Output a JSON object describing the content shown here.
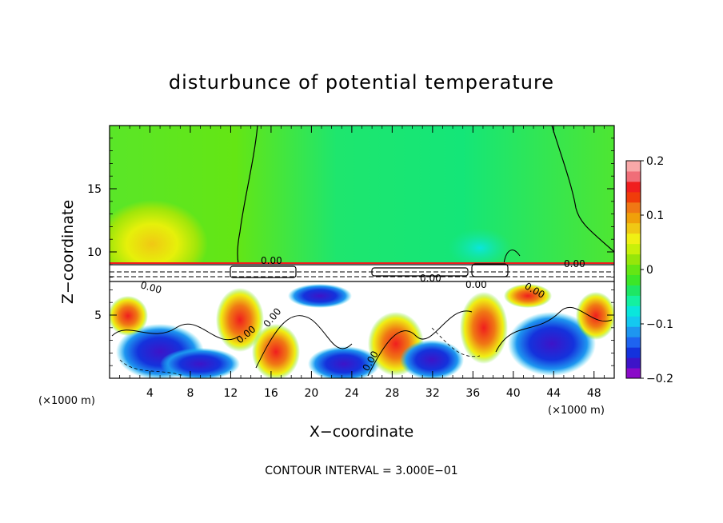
{
  "chart_data": {
    "type": "heatmap",
    "title": "disturbunce of potential temperature",
    "xlabel": "X−coordinate",
    "ylabel": "Z−coordinate",
    "x_unit": "(×1000 m)",
    "x_unit_right": "(×1000 m)",
    "xlim": [
      0,
      50
    ],
    "ylim": [
      0,
      20
    ],
    "x_ticks": [
      4,
      8,
      12,
      16,
      20,
      24,
      28,
      32,
      36,
      40,
      44,
      48
    ],
    "x_tick_labels": [
      "4",
      "8",
      "12",
      "16",
      "20",
      "24",
      "28",
      "32",
      "36",
      "40",
      "44",
      "48"
    ],
    "y_ticks": [
      5,
      10,
      15
    ],
    "y_tick_labels": [
      "5",
      "10",
      "15"
    ],
    "colorbar": {
      "min": -0.2,
      "max": 0.2,
      "ticks": [
        0.2,
        0.1,
        0,
        -0.1,
        -0.2
      ],
      "tick_labels": [
        "0.2",
        "0.1",
        "0",
        "−0.1",
        "−0.2"
      ],
      "colors": [
        "#8a0ac8",
        "#3d14c8",
        "#1432dc",
        "#1e64f0",
        "#1e96f0",
        "#14c8f0",
        "#0ae6dc",
        "#14f0a0",
        "#1ee664",
        "#3ce628",
        "#64e614",
        "#96e60a",
        "#c8f00a",
        "#f0f014",
        "#f0c814",
        "#f0a00a",
        "#f07814",
        "#f03c0a",
        "#f01e1e",
        "#f06e78",
        "#f8a8a8"
      ]
    },
    "contour_labels": [
      "0.00",
      "0.00",
      "0.00",
      "0.00",
      "0.00",
      "0.00",
      "0.00",
      "0.00",
      "0.00"
    ],
    "tropopause_level": 9,
    "footer": "CONTOUR INTERVAL = 3.000E−01"
  }
}
